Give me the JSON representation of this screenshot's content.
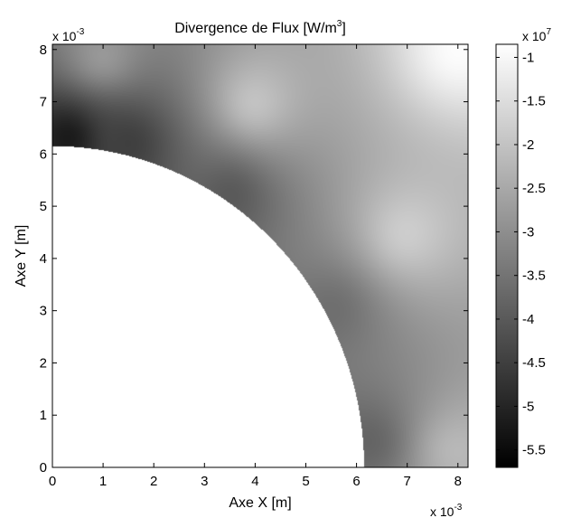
{
  "chart_data": {
    "type": "heatmap",
    "title": "Divergence de Flux [W/m",
    "title_superscript": "3",
    "title_end": "]",
    "xlabel": "Axe X [m]",
    "ylabel": "Axe Y [m]",
    "x_multiplier": "x 10",
    "x_multiplier_exp": "-3",
    "y_multiplier": "x 10",
    "y_multiplier_exp": "-3",
    "colorbar_multiplier": "x 10",
    "colorbar_multiplier_exp": "7",
    "xlim": [
      0,
      0.0082
    ],
    "ylim": [
      0,
      0.0081
    ],
    "x_ticks": [
      {
        "value": 0,
        "label": "0"
      },
      {
        "value": 0.001,
        "label": "1"
      },
      {
        "value": 0.002,
        "label": "2"
      },
      {
        "value": 0.003,
        "label": "3"
      },
      {
        "value": 0.004,
        "label": "4"
      },
      {
        "value": 0.005,
        "label": "5"
      },
      {
        "value": 0.006,
        "label": "6"
      },
      {
        "value": 0.007,
        "label": "7"
      },
      {
        "value": 0.008,
        "label": "8"
      }
    ],
    "y_ticks": [
      {
        "value": 0,
        "label": "0"
      },
      {
        "value": 0.001,
        "label": "1"
      },
      {
        "value": 0.002,
        "label": "2"
      },
      {
        "value": 0.003,
        "label": "3"
      },
      {
        "value": 0.004,
        "label": "4"
      },
      {
        "value": 0.005,
        "label": "5"
      },
      {
        "value": 0.006,
        "label": "6"
      },
      {
        "value": 0.007,
        "label": "7"
      },
      {
        "value": 0.008,
        "label": "8"
      }
    ],
    "colormap": "gray",
    "clim": [
      -57000000,
      -8500000
    ],
    "colorbar_ticks": [
      {
        "value": -10000000,
        "label": "-1"
      },
      {
        "value": -15000000,
        "label": "-1.5"
      },
      {
        "value": -20000000,
        "label": "-2"
      },
      {
        "value": -25000000,
        "label": "-2.5"
      },
      {
        "value": -30000000,
        "label": "-3"
      },
      {
        "value": -35000000,
        "label": "-3.5"
      },
      {
        "value": -40000000,
        "label": "-4"
      },
      {
        "value": -45000000,
        "label": "-4.5"
      },
      {
        "value": -50000000,
        "label": "-5"
      },
      {
        "value": -55000000,
        "label": "-5.5"
      }
    ],
    "excluded_region": {
      "shape": "quarter-disk",
      "center": [
        0,
        0
      ],
      "radius": 0.00615
    },
    "field_samples": [
      {
        "x": 0.0003,
        "y": 0.0063,
        "value": -52000000
      },
      {
        "x": 0.0015,
        "y": 0.0062,
        "value": -45000000
      },
      {
        "x": 0.0035,
        "y": 0.0052,
        "value": -40000000
      },
      {
        "x": 0.0055,
        "y": 0.003,
        "value": -36000000
      },
      {
        "x": 0.0062,
        "y": 0.0005,
        "value": -38000000
      },
      {
        "x": 0.001,
        "y": 0.0079,
        "value": -28000000
      },
      {
        "x": 0.004,
        "y": 0.007,
        "value": -20000000
      },
      {
        "x": 0.007,
        "y": 0.0045,
        "value": -18000000
      },
      {
        "x": 0.008,
        "y": 0.008,
        "value": -9000000
      },
      {
        "x": 0.008,
        "y": 0.0003,
        "value": -22000000
      }
    ]
  }
}
